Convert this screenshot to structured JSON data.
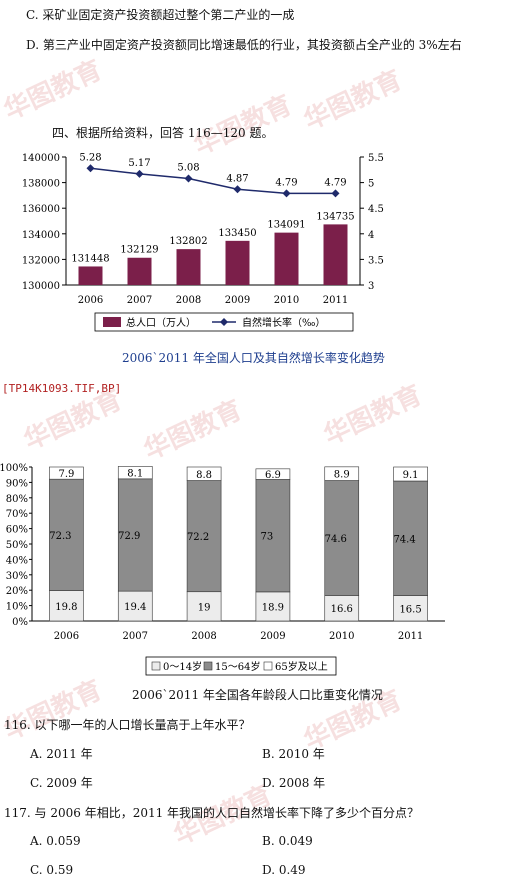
{
  "text": {
    "option_c_prev": "C.  采矿业固定资产投资额超过整个第二产业的一成",
    "option_d_prev": "D.  第三产业中固定资产投资额同比增速最低的行业，其投资额占全产业的 3%左右",
    "section_heading": "四、根据所给资料，回答 116—120 题。",
    "file_code": "[TP14K1093.TIF,BP]",
    "q116": "116.  以下哪一年的人口增长量高于上年水平？",
    "q116_options": [
      "A.  2011 年",
      "B.  2010 年",
      "C.  2009 年",
      "D.  2008 年"
    ],
    "q117": "117.  与 2006 年相比，2011 年我国的人口自然增长率下降了多少个百分点？",
    "q117_options": [
      "A.  0.059",
      "B.  0.049",
      "C.  0.59",
      "D.  0.49"
    ],
    "watermark": "华图教育"
  },
  "colors": {
    "bar_maroon": "#7b1f4a",
    "line_navy": "#1f2a6b",
    "caption_blue": "#1f3f8f",
    "stack_white": "#ffffff",
    "stack_gray": "#8c8c8c",
    "stack_light": "#ececec"
  },
  "chart_data": [
    {
      "type": "bar",
      "title": "2006`2011 年全国人口及其自然增长率变化趋势",
      "categories": [
        "2006",
        "2007",
        "2008",
        "2009",
        "2010",
        "2011"
      ],
      "series": [
        {
          "name": "总人口（万人）",
          "kind": "bar",
          "values": [
            131448,
            132129,
            132802,
            133450,
            134091,
            134735
          ]
        },
        {
          "name": "自然增长率（‰）",
          "kind": "line",
          "axis": "right",
          "values": [
            5.28,
            5.17,
            5.08,
            4.87,
            4.79,
            4.79
          ]
        }
      ],
      "ylim": [
        130000,
        140000
      ],
      "yticks": [
        "130000",
        "132000",
        "134000",
        "136000",
        "138000",
        "140000"
      ],
      "y2lim": [
        3,
        5.5
      ],
      "y2ticks": [
        "3",
        "3.5",
        "4",
        "4.5",
        "5",
        "5.5"
      ],
      "legend_position": "bottom"
    },
    {
      "type": "bar",
      "stacked": true,
      "title": "2006`2011 年全国各年龄段人口比重变化情况",
      "categories": [
        "2006",
        "2007",
        "2008",
        "2009",
        "2010",
        "2011"
      ],
      "series": [
        {
          "name": "0～14岁",
          "values": [
            19.8,
            19.4,
            19,
            18.9,
            16.6,
            16.5
          ]
        },
        {
          "name": "15～64岁",
          "values": [
            72.3,
            72.9,
            72.2,
            73,
            74.6,
            74.4
          ]
        },
        {
          "name": "65岁及以上",
          "values": [
            7.9,
            8.1,
            8.8,
            6.9,
            8.9,
            9.1
          ]
        }
      ],
      "ylim": [
        0,
        100
      ],
      "yticks": [
        "0%",
        "10%",
        "20%",
        "30%",
        "40%",
        "50%",
        "60%",
        "70%",
        "80%",
        "90%",
        "100%"
      ],
      "legend_position": "bottom"
    }
  ]
}
